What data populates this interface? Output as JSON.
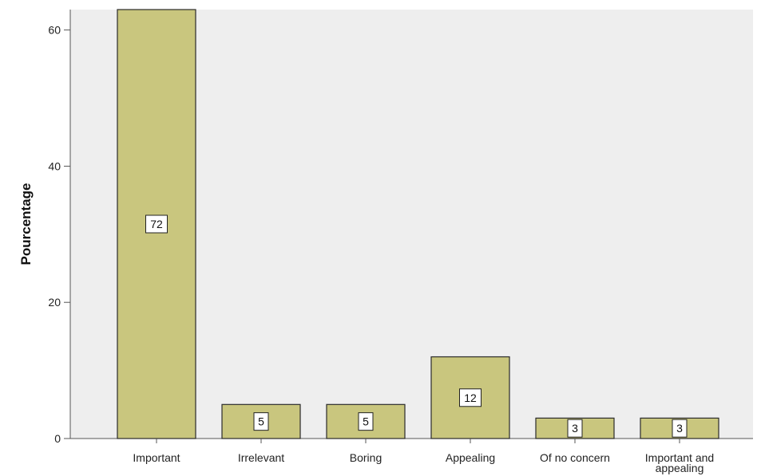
{
  "chart_data": {
    "type": "bar",
    "title": "",
    "xlabel": "",
    "ylabel": "Pourcentage",
    "ylim": [
      0,
      63
    ],
    "yticks": [
      0,
      20,
      40,
      60
    ],
    "categories": [
      "Important",
      "Irrelevant",
      "Boring",
      "Appealing",
      "Of no concern",
      "Important and appealing"
    ],
    "values": [
      72,
      5,
      5,
      12,
      3,
      3
    ],
    "data_labels": [
      "72",
      "5",
      "5",
      "12",
      "3",
      "3"
    ],
    "grid": false,
    "legend": "none",
    "colors": {
      "bar_fill": "#c9c67e",
      "bar_stroke": "#2b2b2b",
      "plot_background": "#eeeeee",
      "label_box": "#ffffff"
    }
  }
}
